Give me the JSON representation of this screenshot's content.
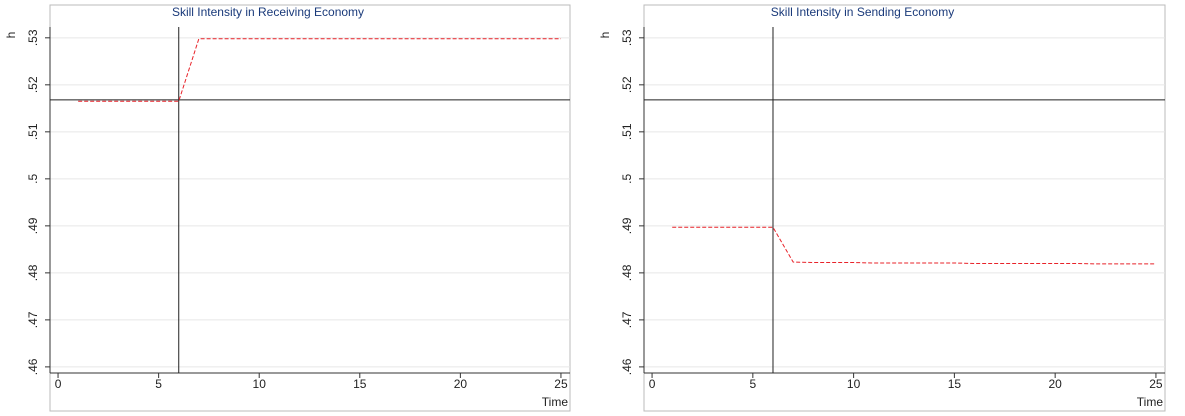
{
  "chart_data": [
    {
      "type": "line",
      "title": "Skill Intensity in Receiving Economy",
      "ylabel": "h",
      "xlabel": "Time",
      "x": [
        1,
        2,
        3,
        4,
        5,
        6,
        7,
        8,
        9,
        10,
        11,
        12,
        13,
        14,
        15,
        16,
        17,
        18,
        19,
        20,
        21,
        22,
        23,
        24,
        25
      ],
      "series": [
        {
          "color": "#e8232a",
          "values": [
            0.5165,
            0.5165,
            0.5165,
            0.5165,
            0.5165,
            0.5165,
            0.5298,
            0.5298,
            0.5298,
            0.5298,
            0.5298,
            0.5298,
            0.5298,
            0.5298,
            0.5298,
            0.5298,
            0.5298,
            0.5298,
            0.5298,
            0.5298,
            0.5298,
            0.5298,
            0.5298,
            0.5298,
            0.5298
          ]
        }
      ],
      "hlines": [
        0.5168
      ],
      "vlines": [
        6
      ],
      "xlim": [
        -0.4,
        25.45
      ],
      "ylim": [
        0.4587,
        0.5323
      ],
      "xticks": [
        0,
        5,
        10,
        15,
        20,
        25
      ],
      "yticks": [
        {
          "value": 0.46,
          "label": ".46"
        },
        {
          "value": 0.47,
          "label": ".47"
        },
        {
          "value": 0.48,
          "label": ".48"
        },
        {
          "value": 0.49,
          "label": ".49"
        },
        {
          "value": 0.5,
          "label": ".5"
        },
        {
          "value": 0.51,
          "label": ".51"
        },
        {
          "value": 0.52,
          "label": ".52"
        },
        {
          "value": 0.53,
          "label": ".53"
        }
      ],
      "grid": true
    },
    {
      "type": "line",
      "title": "Skill Intensity in Sending Economy",
      "ylabel": "h",
      "xlabel": "Time",
      "x": [
        1,
        2,
        3,
        4,
        5,
        6,
        7,
        8,
        9,
        10,
        11,
        12,
        13,
        14,
        15,
        16,
        17,
        18,
        19,
        20,
        21,
        22,
        23,
        24,
        25
      ],
      "series": [
        {
          "color": "#e8232a",
          "values": [
            0.4897,
            0.4897,
            0.4897,
            0.4897,
            0.4897,
            0.4897,
            0.4823,
            0.4822,
            0.4822,
            0.4822,
            0.4821,
            0.4821,
            0.4821,
            0.4821,
            0.4821,
            0.482,
            0.482,
            0.482,
            0.482,
            0.482,
            0.482,
            0.4819,
            0.4819,
            0.4819,
            0.4819
          ]
        }
      ],
      "hlines": [
        0.5168
      ],
      "vlines": [
        6
      ],
      "xlim": [
        -0.4,
        25.45
      ],
      "ylim": [
        0.4587,
        0.5323
      ],
      "xticks": [
        0,
        5,
        10,
        15,
        20,
        25
      ],
      "yticks": [
        {
          "value": 0.46,
          "label": ".46"
        },
        {
          "value": 0.47,
          "label": ".47"
        },
        {
          "value": 0.48,
          "label": ".48"
        },
        {
          "value": 0.49,
          "label": ".49"
        },
        {
          "value": 0.5,
          "label": ".5"
        },
        {
          "value": 0.51,
          "label": ".51"
        },
        {
          "value": 0.52,
          "label": ".52"
        },
        {
          "value": 0.53,
          "label": ".53"
        }
      ],
      "grid": true
    }
  ]
}
